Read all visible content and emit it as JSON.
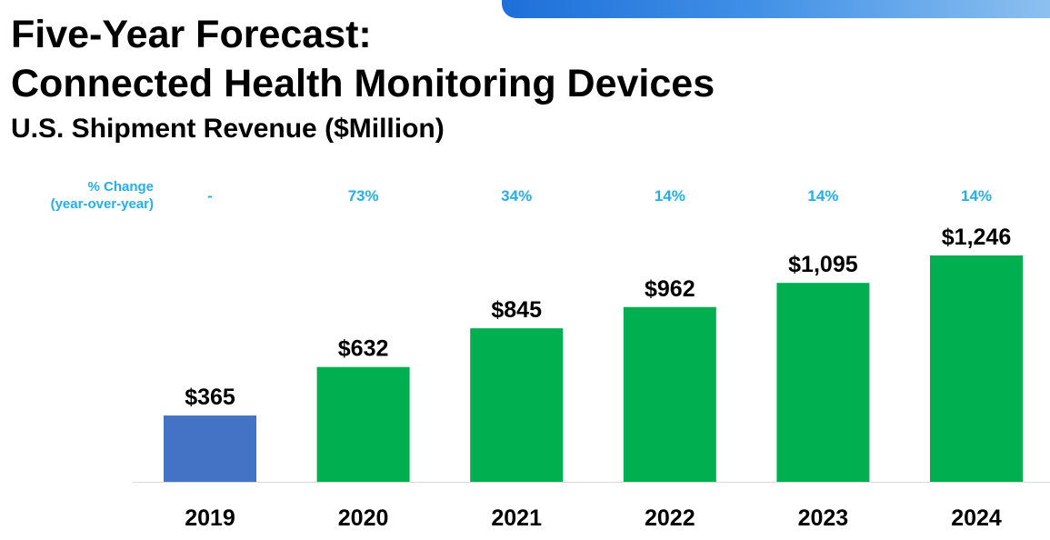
{
  "header": {
    "title_line1": "Five-Year Forecast:",
    "title_line2": "Connected Health Monitoring Devices",
    "subtitle": "U.S. Shipment Revenue ($Million)"
  },
  "change_header": {
    "line1": "% Change",
    "line2": "(year-over-year)"
  },
  "colors": {
    "actual_bar": "#4472c4",
    "forecast_bar": "#00b050",
    "change_text": "#23b0e8",
    "band_start": "#1e6fd9",
    "band_end": "#8cc0f0"
  },
  "chart_data": {
    "type": "bar",
    "categories": [
      "2019",
      "2020",
      "2021",
      "2022",
      "2023",
      "2024"
    ],
    "values": [
      365,
      632,
      845,
      962,
      1095,
      1246
    ],
    "value_labels": [
      "$365",
      "$632",
      "$845",
      "$962",
      "$1,095",
      "$1,246"
    ],
    "pct_change": [
      "-",
      "73%",
      "34%",
      "14%",
      "14%",
      "14%"
    ],
    "bar_colors": [
      "#4472c4",
      "#00b050",
      "#00b050",
      "#00b050",
      "#00b050",
      "#00b050"
    ],
    "ylim": [
      0,
      1246
    ],
    "grid": false,
    "legend": false
  }
}
